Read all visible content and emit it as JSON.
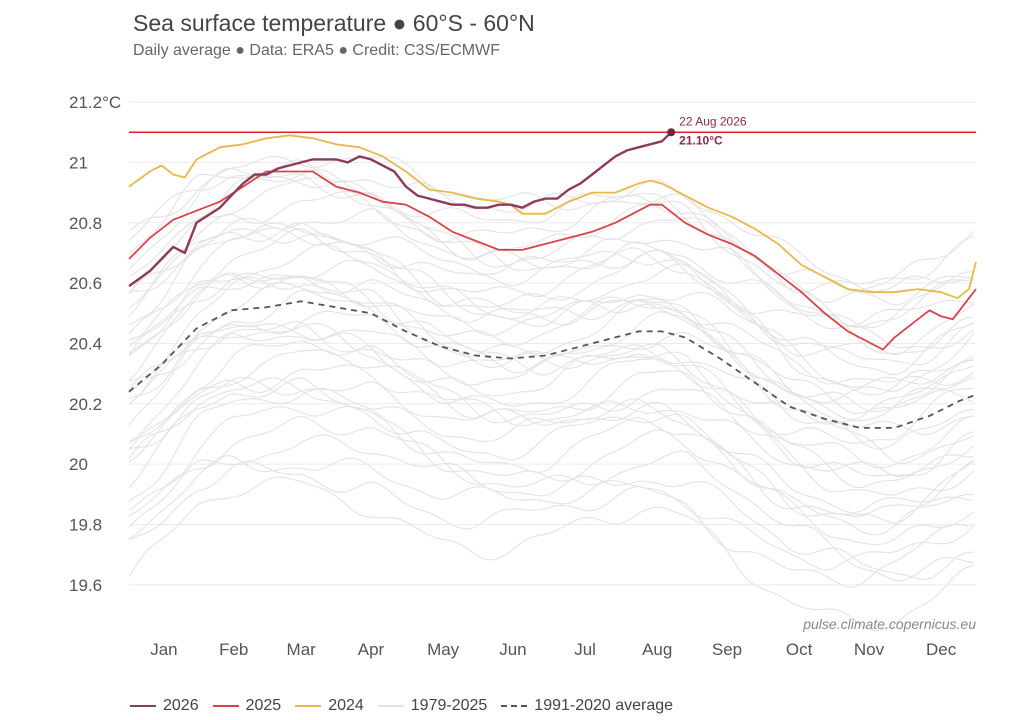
{
  "header": {
    "title": "Sea surface temperature ● 60°S - 60°N",
    "subtitle": "Daily average ● Data: ERA5 ● Credit: C3S/ECMWF"
  },
  "credit": "pulse.climate.copernicus.eu",
  "annotation": {
    "date": "22 Aug 2026",
    "value_label": "21.10°C",
    "value": 21.1
  },
  "colors": {
    "2026": "#8e3a5c",
    "2025": "#d9434a",
    "2024": "#e8b84a",
    "history": "#e3e3e3",
    "average": "#555555",
    "refline": "#e02020"
  },
  "chart_data": {
    "type": "line",
    "title": "Sea surface temperature ● 60°S - 60°N",
    "subtitle": "Daily average ● Data: ERA5 ● Credit: C3S/ECMWF",
    "ylim": [
      19.5,
      21.25
    ],
    "yticks": [
      19.6,
      19.8,
      20,
      20.2,
      20.4,
      20.6,
      20.8,
      21,
      21.2
    ],
    "ytick_labels": [
      "19.6",
      "19.8",
      "20",
      "20.2",
      "20.4",
      "20.6",
      "20.8",
      "21",
      "21.2°C"
    ],
    "x_range_day_of_year": [
      1,
      365
    ],
    "months": [
      {
        "label": "Jan",
        "mid_day": 16
      },
      {
        "label": "Feb",
        "mid_day": 46
      },
      {
        "label": "Mar",
        "mid_day": 75
      },
      {
        "label": "Apr",
        "mid_day": 105
      },
      {
        "label": "May",
        "mid_day": 136
      },
      {
        "label": "Jun",
        "mid_day": 166
      },
      {
        "label": "Jul",
        "mid_day": 197
      },
      {
        "label": "Aug",
        "mid_day": 228
      },
      {
        "label": "Sep",
        "mid_day": 258
      },
      {
        "label": "Oct",
        "mid_day": 289
      },
      {
        "label": "Nov",
        "mid_day": 319
      },
      {
        "label": "Dec",
        "mid_day": 350
      }
    ],
    "legend_position": "bottom",
    "reference_line": {
      "y": 21.1
    },
    "series": [
      {
        "name": "2026",
        "color": "#8e3a5c",
        "width": 2.4,
        "points": [
          [
            1,
            20.59
          ],
          [
            10,
            20.64
          ],
          [
            20,
            20.72
          ],
          [
            25,
            20.7
          ],
          [
            30,
            20.8
          ],
          [
            40,
            20.85
          ],
          [
            45,
            20.89
          ],
          [
            50,
            20.93
          ],
          [
            55,
            20.96
          ],
          [
            60,
            20.96
          ],
          [
            65,
            20.98
          ],
          [
            70,
            20.99
          ],
          [
            75,
            21.0
          ],
          [
            80,
            21.01
          ],
          [
            85,
            21.01
          ],
          [
            90,
            21.01
          ],
          [
            95,
            21.0
          ],
          [
            100,
            21.02
          ],
          [
            105,
            21.01
          ],
          [
            110,
            20.99
          ],
          [
            115,
            20.97
          ],
          [
            120,
            20.92
          ],
          [
            125,
            20.89
          ],
          [
            130,
            20.88
          ],
          [
            135,
            20.87
          ],
          [
            140,
            20.86
          ],
          [
            145,
            20.86
          ],
          [
            150,
            20.85
          ],
          [
            155,
            20.85
          ],
          [
            160,
            20.86
          ],
          [
            165,
            20.86
          ],
          [
            170,
            20.85
          ],
          [
            175,
            20.87
          ],
          [
            180,
            20.88
          ],
          [
            185,
            20.88
          ],
          [
            190,
            20.91
          ],
          [
            195,
            20.93
          ],
          [
            200,
            20.96
          ],
          [
            205,
            20.99
          ],
          [
            210,
            21.02
          ],
          [
            215,
            21.04
          ],
          [
            220,
            21.05
          ],
          [
            225,
            21.06
          ],
          [
            230,
            21.07
          ],
          [
            234,
            21.1
          ]
        ]
      },
      {
        "name": "2025",
        "color": "#d9434a",
        "width": 1.8,
        "points": [
          [
            1,
            20.68
          ],
          [
            10,
            20.75
          ],
          [
            20,
            20.81
          ],
          [
            30,
            20.84
          ],
          [
            40,
            20.87
          ],
          [
            50,
            20.92
          ],
          [
            60,
            20.97
          ],
          [
            70,
            20.97
          ],
          [
            80,
            20.97
          ],
          [
            90,
            20.92
          ],
          [
            100,
            20.9
          ],
          [
            110,
            20.87
          ],
          [
            120,
            20.86
          ],
          [
            130,
            20.82
          ],
          [
            140,
            20.77
          ],
          [
            150,
            20.74
          ],
          [
            160,
            20.71
          ],
          [
            170,
            20.71
          ],
          [
            180,
            20.73
          ],
          [
            190,
            20.75
          ],
          [
            200,
            20.77
          ],
          [
            210,
            20.8
          ],
          [
            220,
            20.84
          ],
          [
            225,
            20.86
          ],
          [
            230,
            20.86
          ],
          [
            240,
            20.8
          ],
          [
            250,
            20.76
          ],
          [
            260,
            20.73
          ],
          [
            270,
            20.69
          ],
          [
            280,
            20.63
          ],
          [
            290,
            20.57
          ],
          [
            300,
            20.5
          ],
          [
            310,
            20.44
          ],
          [
            320,
            20.4
          ],
          [
            325,
            20.38
          ],
          [
            330,
            20.42
          ],
          [
            340,
            20.48
          ],
          [
            345,
            20.51
          ],
          [
            350,
            20.49
          ],
          [
            355,
            20.48
          ],
          [
            365,
            20.58
          ]
        ]
      },
      {
        "name": "2024",
        "color": "#e8b84a",
        "width": 1.8,
        "points": [
          [
            1,
            20.92
          ],
          [
            10,
            20.97
          ],
          [
            15,
            20.99
          ],
          [
            20,
            20.96
          ],
          [
            25,
            20.95
          ],
          [
            30,
            21.01
          ],
          [
            40,
            21.05
          ],
          [
            50,
            21.06
          ],
          [
            60,
            21.08
          ],
          [
            70,
            21.09
          ],
          [
            80,
            21.08
          ],
          [
            90,
            21.06
          ],
          [
            100,
            21.05
          ],
          [
            110,
            21.02
          ],
          [
            120,
            20.97
          ],
          [
            130,
            20.91
          ],
          [
            140,
            20.9
          ],
          [
            150,
            20.88
          ],
          [
            160,
            20.87
          ],
          [
            165,
            20.86
          ],
          [
            170,
            20.83
          ],
          [
            180,
            20.83
          ],
          [
            190,
            20.87
          ],
          [
            200,
            20.9
          ],
          [
            210,
            20.9
          ],
          [
            220,
            20.93
          ],
          [
            225,
            20.94
          ],
          [
            230,
            20.93
          ],
          [
            240,
            20.89
          ],
          [
            250,
            20.85
          ],
          [
            260,
            20.82
          ],
          [
            270,
            20.78
          ],
          [
            280,
            20.73
          ],
          [
            290,
            20.66
          ],
          [
            300,
            20.62
          ],
          [
            310,
            20.58
          ],
          [
            320,
            20.57
          ],
          [
            330,
            20.57
          ],
          [
            340,
            20.58
          ],
          [
            350,
            20.57
          ],
          [
            357,
            20.55
          ],
          [
            362,
            20.58
          ],
          [
            365,
            20.67
          ]
        ]
      },
      {
        "name": "1991-2020 average",
        "color": "#555555",
        "width": 1.8,
        "dash": "6,5",
        "points": [
          [
            1,
            20.24
          ],
          [
            15,
            20.33
          ],
          [
            30,
            20.45
          ],
          [
            45,
            20.51
          ],
          [
            60,
            20.52
          ],
          [
            75,
            20.54
          ],
          [
            90,
            20.52
          ],
          [
            105,
            20.5
          ],
          [
            120,
            20.44
          ],
          [
            135,
            20.39
          ],
          [
            150,
            20.36
          ],
          [
            165,
            20.35
          ],
          [
            180,
            20.36
          ],
          [
            195,
            20.39
          ],
          [
            210,
            20.42
          ],
          [
            220,
            20.44
          ],
          [
            230,
            20.44
          ],
          [
            240,
            20.42
          ],
          [
            255,
            20.35
          ],
          [
            270,
            20.27
          ],
          [
            285,
            20.19
          ],
          [
            300,
            20.15
          ],
          [
            315,
            20.12
          ],
          [
            330,
            20.12
          ],
          [
            345,
            20.16
          ],
          [
            358,
            20.21
          ],
          [
            365,
            20.23
          ]
        ]
      }
    ],
    "history_label": "1979-2025",
    "history_offsets": [
      -0.62,
      -0.55,
      -0.5,
      -0.45,
      -0.41,
      -0.37,
      -0.33,
      -0.3,
      -0.27,
      -0.24,
      -0.21,
      -0.18,
      -0.16,
      -0.13,
      -0.1,
      -0.08,
      -0.05,
      -0.03,
      0.0,
      0.02,
      0.04,
      0.07,
      0.09,
      0.11,
      0.13,
      0.15,
      0.18,
      0.2,
      0.22,
      0.25,
      0.27,
      0.3,
      0.33,
      0.36,
      0.38,
      0.41,
      0.44,
      0.47,
      0.5
    ],
    "legend": [
      {
        "label": "2026",
        "color": "#8e3a5c",
        "style": "solid"
      },
      {
        "label": "2025",
        "color": "#d9434a",
        "style": "solid"
      },
      {
        "label": "2024",
        "color": "#e8b84a",
        "style": "solid"
      },
      {
        "label": "1979-2025",
        "color": "#e3e3e3",
        "style": "solid"
      },
      {
        "label": "1991-2020 average",
        "color": "#555555",
        "style": "dashed"
      }
    ]
  }
}
